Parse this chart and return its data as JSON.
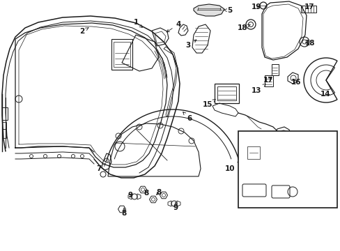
{
  "bg_color": "#ffffff",
  "line_color": "#1a1a1a",
  "figsize": [
    4.89,
    3.6
  ],
  "dpi": 100,
  "body_color": "#f8f8f8"
}
